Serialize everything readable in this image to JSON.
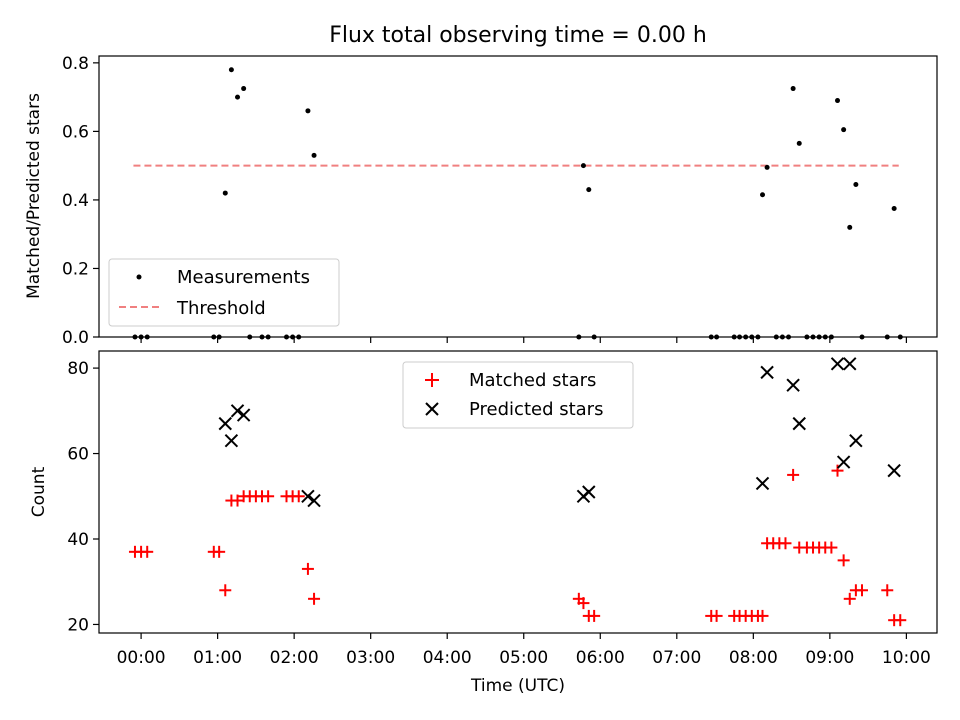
{
  "title": "Flux total observing time = 0.00 h",
  "colors": {
    "measurement": "#000000",
    "threshold": "#f08080",
    "matched": "#ff0000",
    "predicted": "#000000"
  },
  "chart_data": [
    {
      "type": "scatter",
      "ylabel": "Matched/Predicted stars",
      "xlim": [
        -0.55,
        10.4
      ],
      "ylim": [
        0,
        0.82
      ],
      "yticks": [
        "0.0",
        "0.2",
        "0.4",
        "0.6",
        "0.8"
      ],
      "grid": false,
      "legend": {
        "position": "lower-left",
        "entries": [
          "Measurements",
          "Threshold"
        ]
      },
      "threshold": {
        "name": "Threshold",
        "value": 0.5,
        "x": [
          -0.1,
          9.9
        ]
      },
      "series": [
        {
          "name": "Measurements",
          "x": [
            -0.08,
            0.0,
            0.08,
            0.95,
            1.02,
            1.1,
            1.18,
            1.26,
            1.34,
            1.42,
            1.58,
            1.66,
            1.9,
            1.98,
            2.06,
            2.18,
            2.26,
            5.72,
            5.78,
            5.85,
            5.92,
            7.45,
            7.52,
            7.75,
            7.82,
            7.9,
            7.98,
            8.06,
            8.12,
            8.18,
            8.3,
            8.38,
            8.46,
            8.52,
            8.6,
            8.7,
            8.78,
            8.86,
            8.94,
            9.02,
            9.1,
            9.18,
            9.26,
            9.34,
            9.42,
            9.75,
            9.84,
            9.92
          ],
          "y": [
            0,
            0,
            0,
            0,
            0,
            0.42,
            0.78,
            0.7,
            0.725,
            0,
            0,
            0,
            0,
            0,
            0,
            0.66,
            0.53,
            0,
            0.5,
            0.43,
            0,
            0,
            0,
            0,
            0,
            0,
            0,
            0,
            0.415,
            0.495,
            0,
            0,
            0,
            0.725,
            0.565,
            0,
            0,
            0,
            0,
            0,
            0.69,
            0.605,
            0.32,
            0.445,
            0,
            0,
            0.375,
            0
          ]
        }
      ]
    },
    {
      "type": "scatter",
      "xlabel": "Time (UTC)",
      "ylabel": "Count",
      "xlim": [
        -0.55,
        10.4
      ],
      "ylim": [
        18,
        84
      ],
      "yticks": [
        "20",
        "40",
        "60",
        "80"
      ],
      "xticks": [
        {
          "v": 0,
          "label": "00:00"
        },
        {
          "v": 1,
          "label": "01:00"
        },
        {
          "v": 2,
          "label": "02:00"
        },
        {
          "v": 3,
          "label": "03:00"
        },
        {
          "v": 4,
          "label": "04:00"
        },
        {
          "v": 5,
          "label": "05:00"
        },
        {
          "v": 6,
          "label": "06:00"
        },
        {
          "v": 7,
          "label": "07:00"
        },
        {
          "v": 8,
          "label": "08:00"
        },
        {
          "v": 9,
          "label": "09:00"
        },
        {
          "v": 10,
          "label": "10:00"
        }
      ],
      "grid": false,
      "legend": {
        "position": "upper-center",
        "entries": [
          "Matched stars",
          "Predicted stars"
        ]
      },
      "series": [
        {
          "name": "Matched stars",
          "marker": "+",
          "x": [
            -0.08,
            0.0,
            0.08,
            0.95,
            1.02,
            1.1,
            1.18,
            1.26,
            1.34,
            1.42,
            1.5,
            1.58,
            1.66,
            1.9,
            1.98,
            2.06,
            2.18,
            2.26,
            5.72,
            5.78,
            5.85,
            5.92,
            7.45,
            7.52,
            7.75,
            7.82,
            7.9,
            7.98,
            8.06,
            8.12,
            8.18,
            8.26,
            8.34,
            8.42,
            8.52,
            8.6,
            8.7,
            8.78,
            8.86,
            8.94,
            9.02,
            9.1,
            9.18,
            9.26,
            9.34,
            9.42,
            9.75,
            9.84,
            9.92
          ],
          "y": [
            37,
            37,
            37,
            37,
            37,
            28,
            49,
            49,
            50,
            50,
            50,
            50,
            50,
            50,
            50,
            50,
            33,
            26,
            26,
            25,
            22,
            22,
            22,
            22,
            22,
            22,
            22,
            22,
            22,
            22,
            39,
            39,
            39,
            39,
            55,
            38,
            38,
            38,
            38,
            38,
            38,
            56,
            35,
            26,
            28,
            28,
            28,
            21,
            21
          ]
        },
        {
          "name": "Predicted stars",
          "marker": "x",
          "x": [
            1.1,
            1.18,
            1.26,
            1.34,
            2.18,
            2.26,
            5.78,
            5.85,
            8.12,
            8.18,
            8.52,
            8.6,
            9.1,
            9.18,
            9.26,
            9.34,
            9.84
          ],
          "y": [
            67,
            63,
            70,
            69,
            50,
            49,
            50,
            51,
            53,
            79,
            76,
            67,
            81,
            58,
            81,
            63,
            56
          ]
        }
      ]
    }
  ]
}
